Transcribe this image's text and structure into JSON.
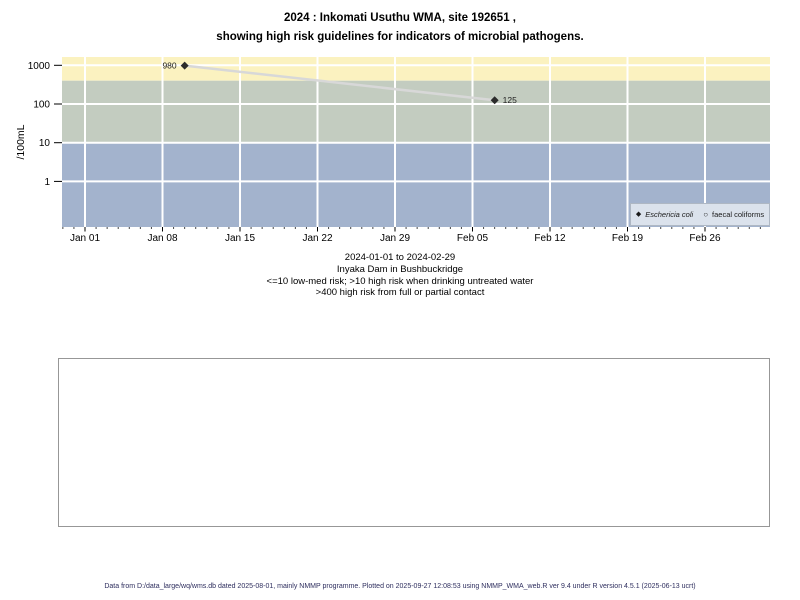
{
  "title": {
    "line1": "2024 : Inkomati Usuthu WMA, site 192651 ,",
    "line2": "showing high risk guidelines for indicators of microbial pathogens."
  },
  "chart_data": {
    "type": "scatter",
    "title": "2024 : Inkomati Usuthu WMA, site 192651 , showing high risk guidelines for indicators of microbial pathogens.",
    "ylabel": "/100mL",
    "xlabel": "",
    "y_scale": "log10",
    "y_ticks": [
      1,
      10,
      100,
      1000
    ],
    "ylim": [
      0.07,
      1600
    ],
    "x_tick_labels": [
      "Jan 01",
      "Jan 08",
      "Jan 15",
      "Jan 22",
      "Jan 29",
      "Feb 05",
      "Feb 12",
      "Feb 19",
      "Feb 26"
    ],
    "x_tick_interval_days": 7,
    "xlim": [
      "2023-12-30",
      "2024-03-02"
    ],
    "grid": true,
    "gridline_color": "#ffffff",
    "legend_position": "bottom-right",
    "bands": [
      {
        "label": ">400 high risk from full or partial contact",
        "lo": 400,
        "hi": null,
        "color": "#fbf2c0"
      },
      {
        "label": ">10 high risk when drinking untreated water",
        "lo": 10,
        "hi": 400,
        "color": "#c3ccc0"
      },
      {
        "label": "<=10 low-med risk",
        "lo": null,
        "hi": 10,
        "color": "#a3b3cd"
      }
    ],
    "series": [
      {
        "name": "Eschericia coli",
        "marker": "filled-diamond",
        "color": "#2b2b2b",
        "line_color": "#d8d8d8",
        "points": [
          {
            "date": "2024-01-10",
            "value": 980,
            "label": "980",
            "label_side": "left"
          },
          {
            "date": "2024-02-07",
            "value": 125,
            "label": "125",
            "label_side": "right"
          }
        ]
      },
      {
        "name": "faecal coliforms",
        "marker": "open-circle",
        "color": "#2b2b2b",
        "points": []
      }
    ]
  },
  "legend": {
    "items": [
      {
        "marker": "filled-diamond",
        "label": "Eschericia coli"
      },
      {
        "marker": "open-circle",
        "label": "faecal coliforms"
      }
    ]
  },
  "caption": {
    "line1": "2024-01-01 to 2024-02-29",
    "line2": "Inyaka Dam in Bushbuckridge",
    "line3": "<=10 low-med risk; >10 high risk when drinking untreated water",
    "line4": ">400 high risk from full or partial contact"
  },
  "footer": {
    "text": "Data from D:/data_large/wq/wms.db dated 2025-08-01, mainly NMMP programme. Plotted on 2025-09-27 12:08:53 using NMMP_WMA_web.R ver 9.4 under R version 4.5.1 (2025-06-13 ucrt)"
  }
}
